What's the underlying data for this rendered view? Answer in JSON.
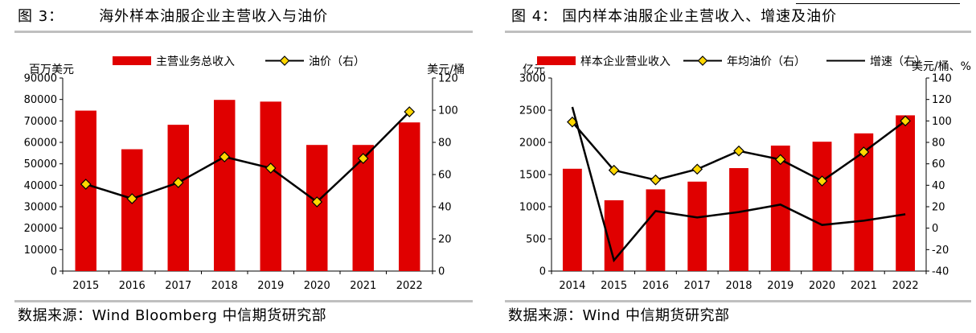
{
  "colors": {
    "bar": "#e00000",
    "line": "#000000",
    "marker_fill": "#ffd700",
    "marker_stroke": "#000000"
  },
  "chart_data": [
    {
      "type": "bar",
      "figure_label": "图 3：",
      "title": "海外样本油服企业主营收入与油价",
      "source": "数据来源：Wind Bloomberg 中信期货研究部",
      "left_unit": "百万美元",
      "right_unit": "美元/桶",
      "categories": [
        "2015",
        "2016",
        "2017",
        "2018",
        "2019",
        "2020",
        "2021",
        "2022"
      ],
      "y_left_ticks": [
        "0",
        "10000",
        "20000",
        "30000",
        "40000",
        "50000",
        "60000",
        "70000",
        "80000",
        "90000"
      ],
      "y_right_ticks": [
        "0",
        "20",
        "40",
        "60",
        "80",
        "100",
        "120"
      ],
      "ylim_left": [
        0,
        90000
      ],
      "ylim_right": [
        0,
        120
      ],
      "legend": [
        "主营业务总收入",
        "油价（右）"
      ],
      "series": [
        {
          "name": "主营业务总收入",
          "type": "bar",
          "axis": "left",
          "values": [
            74800,
            56800,
            68200,
            79800,
            79000,
            58800,
            58800,
            69300
          ]
        },
        {
          "name": "油价（右）",
          "type": "line",
          "axis": "right",
          "marker": "diamond",
          "values": [
            54,
            45,
            55,
            71,
            64,
            43,
            70,
            99
          ]
        }
      ]
    },
    {
      "type": "bar",
      "figure_label": "图 4：",
      "title": "国内样本油服企业主营收入、增速及油价",
      "source": "数据来源：Wind 中信期货研究部",
      "left_unit": "亿元",
      "right_unit": "美元/桶、%",
      "categories": [
        "2014",
        "2015",
        "2016",
        "2017",
        "2018",
        "2019",
        "2020",
        "2021",
        "2022"
      ],
      "y_left_ticks": [
        "0",
        "500",
        "1000",
        "1500",
        "2000",
        "2500",
        "3000"
      ],
      "y_right_ticks": [
        "-40",
        "-20",
        "0",
        "20",
        "40",
        "60",
        "80",
        "100",
        "120",
        "140"
      ],
      "ylim_left": [
        0,
        3000
      ],
      "ylim_right": [
        -40,
        140
      ],
      "legend": [
        "样本企业营业收入",
        "年均油价（右）",
        "增速（右）"
      ],
      "series": [
        {
          "name": "样本企业营业收入",
          "type": "bar",
          "axis": "left",
          "values": [
            1590,
            1100,
            1270,
            1390,
            1600,
            1950,
            2010,
            2140,
            2420
          ]
        },
        {
          "name": "年均油价（右）",
          "type": "line",
          "axis": "right",
          "marker": "diamond",
          "values": [
            99,
            54,
            45,
            55,
            72,
            64,
            44,
            71,
            100
          ]
        },
        {
          "name": "增速（右）",
          "type": "line",
          "axis": "right",
          "marker": "none",
          "values": [
            113,
            -30,
            16,
            10,
            15,
            22,
            3,
            7,
            13
          ]
        }
      ]
    }
  ]
}
